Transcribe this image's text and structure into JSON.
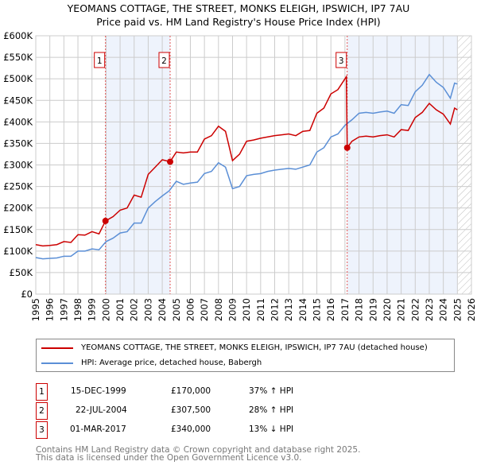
{
  "chart_data": {
    "type": "line",
    "title": "YEOMANS COTTAGE, THE STREET, MONKS ELEIGH, IPSWICH, IP7 7AU",
    "subtitle": "Price paid vs. HM Land Registry's House Price Index (HPI)",
    "xlim": [
      1995,
      2026
    ],
    "ylim": [
      0,
      600000
    ],
    "x_ticks": [
      "1995",
      "1996",
      "1997",
      "1998",
      "1999",
      "2000",
      "2001",
      "2002",
      "2003",
      "2004",
      "2005",
      "2006",
      "2007",
      "2008",
      "2009",
      "2010",
      "2011",
      "2012",
      "2013",
      "2014",
      "2015",
      "2016",
      "2017",
      "2018",
      "2019",
      "2020",
      "2021",
      "2022",
      "2023",
      "2024",
      "2025",
      "2026"
    ],
    "y_ticks": [
      {
        "v": 0,
        "label": "£0"
      },
      {
        "v": 50000,
        "label": "£50K"
      },
      {
        "v": 100000,
        "label": "£100K"
      },
      {
        "v": 150000,
        "label": "£150K"
      },
      {
        "v": 200000,
        "label": "£200K"
      },
      {
        "v": 250000,
        "label": "£250K"
      },
      {
        "v": 300000,
        "label": "£300K"
      },
      {
        "v": 350000,
        "label": "£350K"
      },
      {
        "v": 400000,
        "label": "£400K"
      },
      {
        "v": 450000,
        "label": "£450K"
      },
      {
        "v": 500000,
        "label": "£500K"
      },
      {
        "v": 550000,
        "label": "£550K"
      },
      {
        "v": 600000,
        "label": "£600K"
      }
    ],
    "grid": true,
    "shaded_ranges": [
      [
        1999.96,
        2004.56
      ],
      [
        2017.16,
        2025.0
      ]
    ],
    "forecast_hatch_from": 2025.05,
    "series": [
      {
        "name": "YEOMANS COTTAGE, THE STREET, MONKS ELEIGH, IPSWICH, IP7 7AU (detached house)",
        "color": "#cc0000",
        "points": [
          [
            1995,
            115
          ],
          [
            1995.5,
            112
          ],
          [
            1996,
            113
          ],
          [
            1996.5,
            115
          ],
          [
            1997,
            122
          ],
          [
            1997.5,
            120
          ],
          [
            1998,
            138
          ],
          [
            1998.5,
            137
          ],
          [
            1999,
            145
          ],
          [
            1999.5,
            140
          ],
          [
            1999.96,
            170
          ],
          [
            2000.5,
            180
          ],
          [
            2001,
            195
          ],
          [
            2001.5,
            200
          ],
          [
            2002,
            230
          ],
          [
            2002.5,
            225
          ],
          [
            2003,
            278
          ],
          [
            2003.5,
            295
          ],
          [
            2004,
            312
          ],
          [
            2004.56,
            307.5
          ],
          [
            2005,
            330
          ],
          [
            2005.5,
            328
          ],
          [
            2006,
            330
          ],
          [
            2006.5,
            330
          ],
          [
            2007,
            360
          ],
          [
            2007.5,
            368
          ],
          [
            2008,
            390
          ],
          [
            2008.5,
            378
          ],
          [
            2009,
            310
          ],
          [
            2009.5,
            325
          ],
          [
            2010,
            355
          ],
          [
            2010.5,
            358
          ],
          [
            2011,
            362
          ],
          [
            2011.5,
            365
          ],
          [
            2012,
            368
          ],
          [
            2012.5,
            370
          ],
          [
            2013,
            372
          ],
          [
            2013.5,
            368
          ],
          [
            2014,
            378
          ],
          [
            2014.5,
            380
          ],
          [
            2015,
            420
          ],
          [
            2015.5,
            432
          ],
          [
            2016,
            465
          ],
          [
            2016.5,
            475
          ],
          [
            2017.1,
            505
          ],
          [
            2017.16,
            340
          ],
          [
            2017.5,
            355
          ],
          [
            2018,
            365
          ],
          [
            2018.5,
            367
          ],
          [
            2019,
            365
          ],
          [
            2019.5,
            368
          ],
          [
            2020,
            370
          ],
          [
            2020.5,
            365
          ],
          [
            2021,
            382
          ],
          [
            2021.5,
            380
          ],
          [
            2022,
            410
          ],
          [
            2022.5,
            422
          ],
          [
            2023,
            443
          ],
          [
            2023.5,
            428
          ],
          [
            2024,
            418
          ],
          [
            2024.5,
            395
          ],
          [
            2024.8,
            432
          ],
          [
            2025,
            428
          ]
        ]
      },
      {
        "name": "HPI: Average price, detached house, Babergh",
        "color": "#5b8fd6",
        "points": [
          [
            1995,
            85
          ],
          [
            1995.5,
            82
          ],
          [
            1996,
            83
          ],
          [
            1996.5,
            84
          ],
          [
            1997,
            88
          ],
          [
            1997.5,
            88
          ],
          [
            1998,
            100
          ],
          [
            1998.5,
            100
          ],
          [
            1999,
            105
          ],
          [
            1999.5,
            103
          ],
          [
            2000,
            122
          ],
          [
            2000.5,
            130
          ],
          [
            2001,
            142
          ],
          [
            2001.5,
            145
          ],
          [
            2002,
            165
          ],
          [
            2002.5,
            165
          ],
          [
            2003,
            200
          ],
          [
            2003.5,
            215
          ],
          [
            2004,
            228
          ],
          [
            2004.5,
            240
          ],
          [
            2005,
            262
          ],
          [
            2005.5,
            255
          ],
          [
            2006,
            258
          ],
          [
            2006.5,
            260
          ],
          [
            2007,
            280
          ],
          [
            2007.5,
            285
          ],
          [
            2008,
            305
          ],
          [
            2008.5,
            295
          ],
          [
            2009,
            245
          ],
          [
            2009.5,
            250
          ],
          [
            2010,
            275
          ],
          [
            2010.5,
            278
          ],
          [
            2011,
            280
          ],
          [
            2011.5,
            285
          ],
          [
            2012,
            288
          ],
          [
            2012.5,
            290
          ],
          [
            2013,
            292
          ],
          [
            2013.5,
            290
          ],
          [
            2014,
            295
          ],
          [
            2014.5,
            300
          ],
          [
            2015,
            330
          ],
          [
            2015.5,
            340
          ],
          [
            2016,
            365
          ],
          [
            2016.5,
            372
          ],
          [
            2017,
            392
          ],
          [
            2017.5,
            405
          ],
          [
            2018,
            420
          ],
          [
            2018.5,
            422
          ],
          [
            2019,
            420
          ],
          [
            2019.5,
            423
          ],
          [
            2020,
            425
          ],
          [
            2020.5,
            420
          ],
          [
            2021,
            440
          ],
          [
            2021.5,
            438
          ],
          [
            2022,
            470
          ],
          [
            2022.5,
            485
          ],
          [
            2023,
            510
          ],
          [
            2023.5,
            492
          ],
          [
            2024,
            480
          ],
          [
            2024.5,
            455
          ],
          [
            2024.8,
            490
          ],
          [
            2025,
            488
          ]
        ]
      }
    ],
    "sales": [
      {
        "n": "1",
        "x": 1999.96,
        "value": 170000,
        "date": "15-DEC-1999",
        "price": "£170,000",
        "hpi": "37% ↑ HPI"
      },
      {
        "n": "2",
        "x": 2004.56,
        "value": 307500,
        "date": "22-JUL-2004",
        "price": "£307,500",
        "hpi": "28% ↑ HPI"
      },
      {
        "n": "3",
        "x": 2017.16,
        "value": 340000,
        "date": "01-MAR-2017",
        "price": "£340,000",
        "hpi": "13% ↓ HPI"
      }
    ]
  },
  "footer": {
    "line1": "Contains HM Land Registry data © Crown copyright and database right 2025.",
    "line2": "This data is licensed under the Open Government Licence v3.0."
  }
}
